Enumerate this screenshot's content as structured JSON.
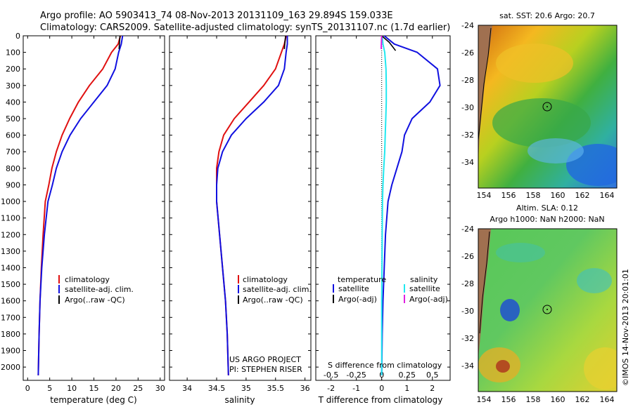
{
  "header": {
    "line1": "Argo profile: AO 5903413_74 08-Nov-2013 20131109_163 29.894S 159.033E",
    "line2": "Climatology: CARS2009. Satellite-adjusted climatology: synTS_20131107.nc (1.7d earlier)"
  },
  "colors": {
    "climatology": "#e01010",
    "satellite": "#1010e0",
    "argo": "#000000",
    "satellite_salinity": "#20e8f0",
    "argo_salinity": "#e020e0"
  },
  "chart_data": [
    {
      "id": "temperature",
      "type": "line",
      "xlabel": "temperature (deg C)",
      "ylabel": "",
      "xlim": [
        -1,
        31
      ],
      "ylim": [
        2080,
        0
      ],
      "xticks": [
        0,
        5,
        10,
        15,
        20,
        25,
        30
      ],
      "xtick_labels": [
        "0",
        "5",
        "10",
        "15",
        "20",
        "25",
        "30"
      ],
      "yticks": [
        0,
        100,
        200,
        300,
        400,
        500,
        600,
        700,
        800,
        900,
        1000,
        1100,
        1200,
        1300,
        1400,
        1500,
        1600,
        1700,
        1800,
        1900,
        2000
      ],
      "ytick_labels": [
        "0",
        "100",
        "200",
        "300",
        "400",
        "500",
        "600",
        "700",
        "800",
        "900",
        "1000",
        "1100",
        "1200",
        "1300",
        "1400",
        "1500",
        "1600",
        "1700",
        "1800",
        "1900",
        "2000"
      ],
      "legend": [
        "climatology",
        "satellite-adj. clim.",
        "Argo(..raw -QC)"
      ],
      "series": [
        {
          "name": "climatology",
          "color_key": "climatology",
          "x": [
            21,
            20.5,
            19,
            17,
            14,
            11.5,
            9.5,
            7.8,
            6.5,
            5.5,
            4.8,
            4.0,
            3.5,
            3.1,
            2.8,
            2.6,
            2.4
          ],
          "y": [
            0,
            50,
            100,
            200,
            300,
            400,
            500,
            600,
            700,
            800,
            900,
            1000,
            1200,
            1400,
            1600,
            1800,
            2050
          ]
        },
        {
          "name": "satellite-adj. clim.",
          "color_key": "satellite",
          "x": [
            21.5,
            21.2,
            20.6,
            19.8,
            18,
            15,
            12,
            9.6,
            7.8,
            6.5,
            5.6,
            4.6,
            3.8,
            3.2,
            2.8,
            2.6,
            2.4
          ],
          "y": [
            0,
            50,
            100,
            200,
            300,
            400,
            500,
            600,
            700,
            800,
            900,
            1000,
            1200,
            1400,
            1600,
            1800,
            2050
          ]
        },
        {
          "name": "Argo(..raw -QC)",
          "color_key": "argo",
          "x": [
            20.9,
            20.8,
            20.7
          ],
          "y": [
            0,
            40,
            80
          ]
        }
      ]
    },
    {
      "id": "salinity",
      "type": "line",
      "xlabel": "salinity",
      "ylabel": "",
      "xlim": [
        33.7,
        36.1
      ],
      "ylim": [
        2080,
        0
      ],
      "xticks": [
        34,
        34.5,
        35,
        35.5,
        36
      ],
      "xtick_labels": [
        "34",
        "34.5",
        "35",
        "35.5",
        "36"
      ],
      "legend": [
        "climatology",
        "satellite-adj. clim.",
        "Argo(..raw -QC)"
      ],
      "annotations": [
        "US ARGO PROJECT",
        "PI: STEPHEN RISER"
      ],
      "series": [
        {
          "name": "climatology",
          "color_key": "climatology",
          "x": [
            35.68,
            35.65,
            35.6,
            35.5,
            35.3,
            35.05,
            34.8,
            34.62,
            34.54,
            34.5,
            34.5,
            34.5,
            34.55,
            34.6,
            34.65,
            34.68,
            34.7
          ],
          "y": [
            0,
            50,
            100,
            200,
            300,
            400,
            500,
            600,
            700,
            800,
            900,
            1000,
            1200,
            1400,
            1600,
            1800,
            2050
          ]
        },
        {
          "name": "satellite-adj. clim.",
          "color_key": "satellite",
          "x": [
            35.7,
            35.7,
            35.68,
            35.65,
            35.55,
            35.3,
            35.0,
            34.75,
            34.6,
            34.52,
            34.5,
            34.5,
            34.55,
            34.6,
            34.65,
            34.68,
            34.7
          ],
          "y": [
            0,
            50,
            100,
            200,
            300,
            400,
            500,
            600,
            700,
            800,
            900,
            1000,
            1200,
            1400,
            1600,
            1800,
            2050
          ]
        },
        {
          "name": "Argo(..raw -QC)",
          "color_key": "argo",
          "x": [
            35.67,
            35.66,
            35.65
          ],
          "y": [
            0,
            40,
            80
          ]
        }
      ]
    },
    {
      "id": "difference",
      "type": "line",
      "xlabel": "T difference from climatology",
      "xlabel_top": "S difference from climatology",
      "xlim": [
        -2.6,
        2.7
      ],
      "ylim": [
        2080,
        0
      ],
      "xticks": [
        -2,
        -1,
        0,
        1,
        2
      ],
      "xtick_labels": [
        "-2",
        "-1",
        "0",
        "1",
        "2"
      ],
      "xticks_s": [
        -0.5,
        -0.25,
        0,
        0.25,
        0.5
      ],
      "xtick_labels_s": [
        "-0.5",
        "-0.25",
        "0",
        "0.25",
        "0.5"
      ],
      "s_scale_factor": 4,
      "legend_headers": [
        "temperature",
        "salinity"
      ],
      "legend": [
        "satellite",
        "Argo(-adj)",
        "satellite",
        "Argo(-adj)"
      ],
      "series": [
        {
          "name": "temperature satellite",
          "color_key": "satellite",
          "x": [
            0.1,
            0.5,
            1.4,
            2.2,
            2.3,
            1.9,
            1.2,
            0.9,
            0.8,
            0.6,
            0.4,
            0.25,
            0.15,
            0.1,
            0.05,
            0.02,
            0.0
          ],
          "y": [
            0,
            50,
            100,
            200,
            300,
            400,
            500,
            600,
            700,
            800,
            900,
            1000,
            1200,
            1400,
            1600,
            1800,
            2050
          ]
        },
        {
          "name": "salinity satellite",
          "color_key": "satellite_salinity",
          "x": [
            0.02,
            0.05,
            0.12,
            0.17,
            0.18,
            0.18,
            0.16,
            0.14,
            0.12,
            0.08,
            0.05,
            0.03,
            0.02,
            0.01,
            0.0,
            0.0,
            0.0
          ],
          "y": [
            0,
            50,
            100,
            200,
            300,
            400,
            500,
            600,
            700,
            800,
            900,
            1000,
            1200,
            1400,
            1600,
            1800,
            2050
          ]
        },
        {
          "name": "temperature Argo(-adj)",
          "color_key": "argo",
          "x": [
            0.0,
            0.3,
            0.55
          ],
          "y": [
            0,
            40,
            90
          ]
        },
        {
          "name": "salinity Argo(-adj)",
          "color_key": "argo_salinity",
          "x": [
            0.0,
            -0.01,
            -0.02
          ],
          "y": [
            0,
            40,
            80
          ]
        }
      ]
    }
  ],
  "maps": {
    "sst": {
      "title": "sat. SST: 20.6 Argo: 20.7",
      "lat_labels": [
        "-24",
        "-26",
        "-28",
        "-30",
        "-32",
        "-34"
      ],
      "lon_labels": [
        "154",
        "156",
        "158",
        "160",
        "162",
        "164"
      ]
    },
    "sla": {
      "title1": "Altim. SLA: 0.12",
      "title2": "Argo h1000: NaN h2000: NaN",
      "lat_labels": [
        "-24",
        "-26",
        "-28",
        "-30",
        "-32",
        "-34"
      ],
      "lon_labels": [
        "154",
        "156",
        "158",
        "160",
        "162",
        "164"
      ]
    }
  },
  "footer": {
    "imos_stamp": "©IMOS 14-Nov-2013 20:01:01"
  }
}
